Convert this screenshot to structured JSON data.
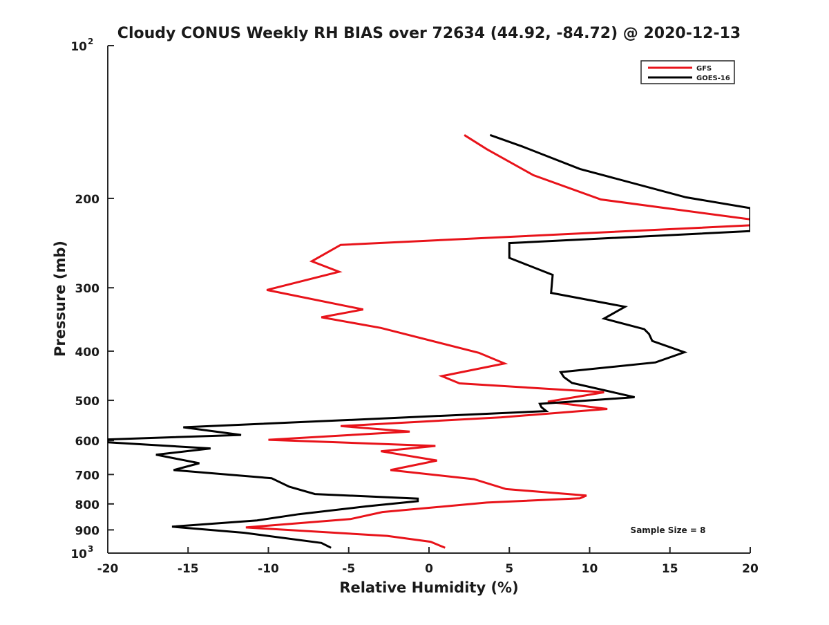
{
  "chart_data": {
    "type": "line",
    "title": "Cloudy CONUS Weekly RH BIAS over 72634 (44.92, -84.72) @ 2020-12-13",
    "xlabel": "Relative Humidity (%)",
    "ylabel": "Pressure (mb)",
    "xlim": [
      -20,
      20
    ],
    "ylim": [
      1000,
      100
    ],
    "yscale": "log",
    "y_reversed": true,
    "grid": false,
    "legend_position": "top-right",
    "x_ticks": [
      "-20",
      "-15",
      "-10",
      "-5",
      "0",
      "5",
      "10",
      "15",
      "20"
    ],
    "y_ticks": [
      {
        "value": 100,
        "label": "10",
        "sup": "2"
      },
      {
        "value": 200,
        "label": "200"
      },
      {
        "value": 300,
        "label": "300"
      },
      {
        "value": 400,
        "label": "400"
      },
      {
        "value": 500,
        "label": "500"
      },
      {
        "value": 600,
        "label": "600"
      },
      {
        "value": 700,
        "label": "700"
      },
      {
        "value": 800,
        "label": "800"
      },
      {
        "value": 900,
        "label": "900"
      },
      {
        "value": 1000,
        "label": "10",
        "sup": "3"
      }
    ],
    "annotation": "Sample Size = 8",
    "series": [
      {
        "name": "GFS",
        "color": "#e8131a",
        "points": [
          [
            1.0,
            976
          ],
          [
            0.1,
            950
          ],
          [
            -2.6,
            925
          ],
          [
            -11.4,
            890
          ],
          [
            -4.9,
            857
          ],
          [
            -2.9,
            830
          ],
          [
            3.6,
            795
          ],
          [
            9.4,
            780
          ],
          [
            9.8,
            770
          ],
          [
            4.8,
            748
          ],
          [
            2.8,
            715
          ],
          [
            -2.4,
            686
          ],
          [
            0.5,
            657
          ],
          [
            -3.0,
            630
          ],
          [
            0.4,
            615
          ],
          [
            -10.0,
            598
          ],
          [
            -1.2,
            576
          ],
          [
            -5.5,
            562
          ],
          [
            4.5,
            540
          ],
          [
            11.1,
            520
          ],
          [
            7.4,
            503
          ],
          [
            10.9,
            482
          ],
          [
            1.9,
            463
          ],
          [
            0.8,
            448
          ],
          [
            4.7,
            423
          ],
          [
            3.1,
            403
          ],
          [
            -3.0,
            360
          ],
          [
            -6.7,
            343
          ],
          [
            -4.1,
            331
          ],
          [
            -10.1,
            303
          ],
          [
            -5.6,
            279
          ],
          [
            -7.3,
            266
          ],
          [
            -5.5,
            247
          ],
          [
            20.0,
            226
          ],
          [
            20.0,
            220
          ],
          [
            10.7,
            201
          ],
          [
            6.5,
            180
          ],
          [
            3.6,
            160
          ],
          [
            2.2,
            150
          ]
        ]
      },
      {
        "name": "GOES-16",
        "color": "#000000",
        "points": [
          [
            -6.1,
            976
          ],
          [
            -6.7,
            955
          ],
          [
            -11.5,
            912
          ],
          [
            -16.0,
            887
          ],
          [
            -10.7,
            862
          ],
          [
            -8.1,
            838
          ],
          [
            -3.9,
            809
          ],
          [
            -0.7,
            790
          ],
          [
            -0.7,
            781
          ],
          [
            -7.1,
            765
          ],
          [
            -8.7,
            740
          ],
          [
            -9.8,
            712
          ],
          [
            -15.9,
            686
          ],
          [
            -14.3,
            665
          ],
          [
            -17.0,
            640
          ],
          [
            -13.6,
            622
          ],
          [
            -20.0,
            605
          ],
          [
            -20.0,
            597
          ],
          [
            -11.7,
            585
          ],
          [
            -15.3,
            565
          ],
          [
            -5.8,
            548
          ],
          [
            7.3,
            525
          ],
          [
            7.0,
            516
          ],
          [
            6.9,
            508
          ],
          [
            12.8,
            493
          ],
          [
            8.9,
            462
          ],
          [
            8.4,
            450
          ],
          [
            8.2,
            440
          ],
          [
            14.1,
            421
          ],
          [
            15.9,
            402
          ],
          [
            13.9,
            382
          ],
          [
            13.7,
            370
          ],
          [
            13.4,
            362
          ],
          [
            10.9,
            345
          ],
          [
            12.2,
            327
          ],
          [
            7.6,
            307
          ],
          [
            7.7,
            283
          ],
          [
            5.0,
            262
          ],
          [
            5.0,
            245
          ],
          [
            20.0,
            232
          ],
          [
            20.0,
            209
          ],
          [
            16.0,
            199
          ],
          [
            9.4,
            175
          ],
          [
            5.8,
            158
          ],
          [
            3.8,
            150
          ]
        ]
      }
    ]
  }
}
